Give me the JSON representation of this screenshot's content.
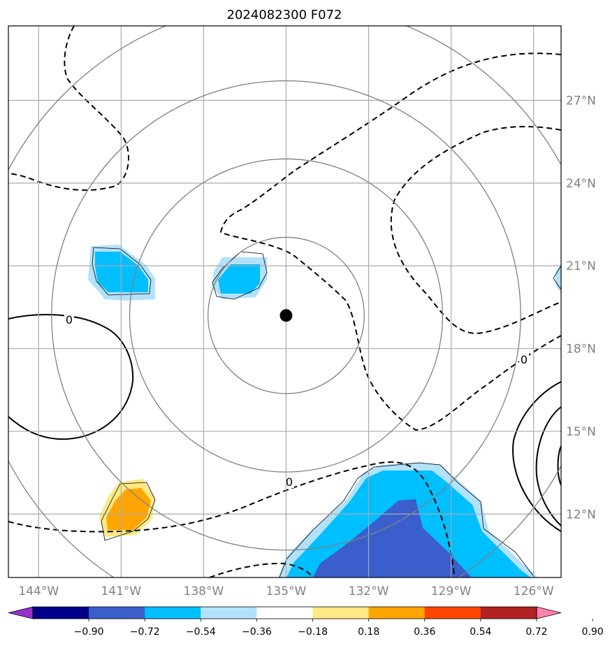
{
  "chart_data": {
    "type": "map-contour",
    "title": "2024082300 F072",
    "x_ticks": [
      "144°W",
      "141°W",
      "138°W",
      "135°W",
      "132°W",
      "129°W",
      "126°W"
    ],
    "x_values": [
      -144,
      -141,
      -138,
      -135,
      -132,
      -129,
      -126
    ],
    "y_ticks": [
      "27°N",
      "24°N",
      "21°N",
      "18°N",
      "15°N",
      "12°N"
    ],
    "y_values": [
      27,
      24,
      21,
      18,
      15,
      12
    ],
    "xlim": [
      -145.1,
      -125.0
    ],
    "ylim": [
      9.7,
      29.7
    ],
    "center": {
      "lon": -135.0,
      "lat": 19.2
    },
    "range_rings": [
      2.84,
      5.69,
      8.53
    ],
    "grid": true,
    "contour_labels": [
      "0",
      "0",
      "0"
    ],
    "colorbar": {
      "ticks": [
        "−0.90",
        "−0.72",
        "−0.54",
        "−0.36",
        "−0.18",
        "0.18",
        "0.36",
        "0.54",
        "0.72",
        "0.90"
      ],
      "colors": [
        "#9932cc",
        "#00008b",
        "#3a5fcd",
        "#00bfff",
        "#b2e2fb",
        "#ffffff",
        "#ffe985",
        "#ffa500",
        "#ff4500",
        "#b22222",
        "#ff82ab"
      ],
      "extend": "both",
      "placement": "bottom"
    }
  }
}
